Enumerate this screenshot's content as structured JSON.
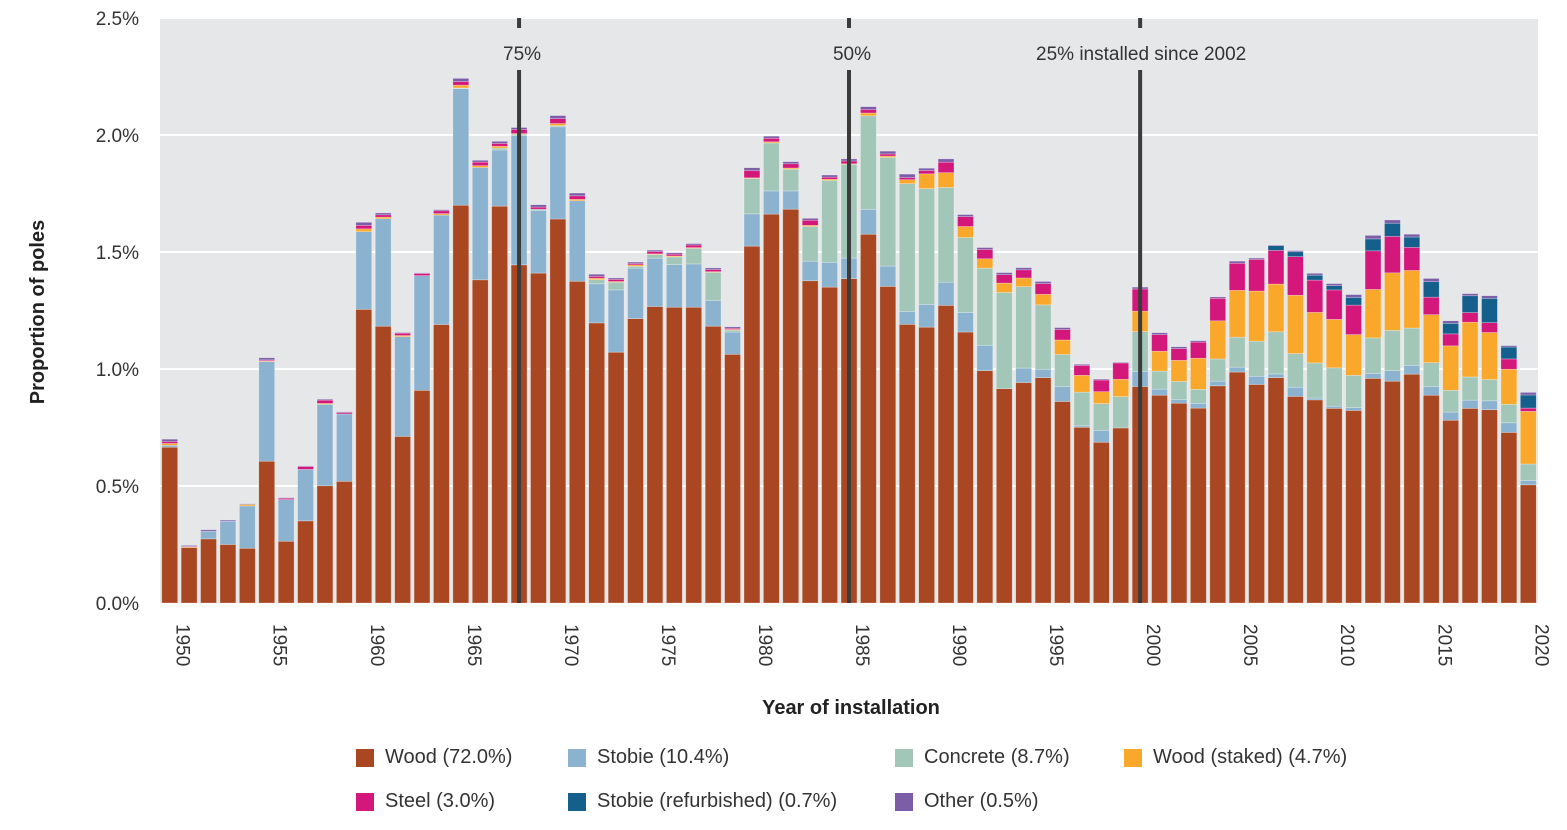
{
  "chart_data": {
    "type": "bar",
    "stacked": true,
    "title": "",
    "xlabel": "Year of installation",
    "ylabel": "Proportion of poles",
    "ylim": [
      0,
      2.5
    ],
    "yticks": [
      "0.0%",
      "0.5%",
      "1.0%",
      "1.5%",
      "2.0%",
      "2.5%"
    ],
    "ytick_values": [
      0,
      0.5,
      1.0,
      1.5,
      2.0,
      2.5
    ],
    "xticks": [
      "1950",
      "1955",
      "1960",
      "1965",
      "1970",
      "1975",
      "1980",
      "1985",
      "1990",
      "1995",
      "2000",
      "2005",
      "2010",
      "2015",
      "2020"
    ],
    "grid": true,
    "legend_placement": "bottom",
    "x_start": 1950,
    "x_end": 2020,
    "reference_lines": [
      {
        "year": 1968,
        "label": "75%"
      },
      {
        "year": 1985,
        "label": "50%"
      },
      {
        "year": 2000,
        "label": "25% installed since 2002"
      }
    ],
    "series": [
      {
        "name": "Wood",
        "legend": "Wood (72.0%)",
        "color": "#a84722",
        "values": [
          0.666,
          0.237,
          0.274,
          0.25,
          0.234,
          0.606,
          0.264,
          0.351,
          0.501,
          0.52,
          1.255,
          1.183,
          0.712,
          0.909,
          1.19,
          1.7,
          1.381,
          1.696,
          1.445,
          1.41,
          1.641,
          1.375,
          1.197,
          1.072,
          1.215,
          1.267,
          1.264,
          1.264,
          1.183,
          1.063,
          1.525,
          1.662,
          1.683,
          1.377,
          1.35,
          1.386,
          1.576,
          1.353,
          1.191,
          1.179,
          1.272,
          1.158,
          0.993,
          0.916,
          0.942,
          0.963,
          0.861,
          0.751,
          0.687,
          0.748,
          0.925,
          0.888,
          0.854,
          0.833,
          0.928,
          0.987,
          0.934,
          0.963,
          0.883,
          0.868,
          0.832,
          0.823,
          0.96,
          0.948,
          0.978,
          0.888,
          0.781,
          0.832,
          0.826,
          0.729,
          0.505
        ]
      },
      {
        "name": "Stobie",
        "legend": "Stobie (10.4%)",
        "color": "#8bb3cf",
        "values": [
          0.008,
          0,
          0.033,
          0.099,
          0.181,
          0.426,
          0.178,
          0.22,
          0.348,
          0.288,
          0.332,
          0.459,
          0.426,
          0.49,
          0.468,
          0.498,
          0.48,
          0.24,
          0.552,
          0.268,
          0.394,
          0.344,
          0.167,
          0.266,
          0.216,
          0.207,
          0.182,
          0.185,
          0.11,
          0.095,
          0.138,
          0.099,
          0.078,
          0.084,
          0.106,
          0.088,
          0.106,
          0.087,
          0.055,
          0.097,
          0.099,
          0.083,
          0.108,
          0,
          0.062,
          0.036,
          0.064,
          0.006,
          0.051,
          0,
          0.065,
          0.026,
          0.016,
          0.02,
          0.02,
          0.021,
          0.035,
          0.016,
          0.039,
          0.008,
          0.009,
          0.012,
          0.021,
          0.045,
          0.037,
          0.037,
          0.035,
          0.035,
          0.038,
          0.041,
          0.018
        ]
      },
      {
        "name": "Concrete",
        "legend": "Concrete (8.7%)",
        "color": "#a2c6b8",
        "values": [
          0,
          0,
          0,
          0,
          0,
          0,
          0,
          0,
          0,
          0,
          0,
          0,
          0,
          0,
          0,
          0.003,
          0,
          0.008,
          0.006,
          0.005,
          0.005,
          0,
          0.018,
          0.033,
          0.008,
          0.015,
          0.033,
          0.067,
          0.12,
          0.008,
          0.151,
          0.205,
          0.093,
          0.148,
          0.35,
          0.4,
          0.4,
          0.464,
          0.546,
          0.495,
          0.405,
          0.321,
          0.33,
          0.411,
          0.348,
          0.275,
          0.137,
          0.144,
          0.114,
          0.134,
          0.17,
          0.077,
          0.077,
          0.06,
          0.095,
          0.128,
          0.15,
          0.18,
          0.144,
          0.15,
          0.164,
          0.138,
          0.152,
          0.172,
          0.16,
          0.102,
          0.093,
          0.099,
          0.091,
          0.079,
          0.071
        ]
      },
      {
        "name": "Wood (staked)",
        "legend": "Wood (staked) (4.7%)",
        "color": "#f9a82b",
        "values": [
          0.008,
          0.003,
          0,
          0,
          0.006,
          0.003,
          0,
          0,
          0.004,
          0,
          0.012,
          0.007,
          0.005,
          0,
          0.006,
          0.012,
          0.008,
          0.008,
          0.003,
          0,
          0.009,
          0.006,
          0.006,
          0.003,
          0.006,
          0.003,
          0.004,
          0.003,
          0.003,
          0.003,
          0.003,
          0.005,
          0.005,
          0.005,
          0.005,
          0.003,
          0.012,
          0.006,
          0.017,
          0.063,
          0.063,
          0.047,
          0.04,
          0.04,
          0.037,
          0.045,
          0.062,
          0.072,
          0.051,
          0.074,
          0.087,
          0.085,
          0.09,
          0.133,
          0.163,
          0.2,
          0.214,
          0.204,
          0.249,
          0.216,
          0.207,
          0.174,
          0.207,
          0.246,
          0.246,
          0.205,
          0.19,
          0.234,
          0.201,
          0.15,
          0.225
        ]
      },
      {
        "name": "Steel",
        "legend": "Steel (3.0%)",
        "color": "#d4177b",
        "values": [
          0.008,
          0.002,
          0,
          0,
          0,
          0.004,
          0.006,
          0.012,
          0.014,
          0.006,
          0.015,
          0.01,
          0.01,
          0.009,
          0.012,
          0.015,
          0.015,
          0.012,
          0.018,
          0.009,
          0.021,
          0.015,
          0.008,
          0.009,
          0.006,
          0.01,
          0.008,
          0.011,
          0.009,
          0.005,
          0.031,
          0.015,
          0.018,
          0.022,
          0.009,
          0.012,
          0.015,
          0.009,
          0.009,
          0.014,
          0.045,
          0.042,
          0.04,
          0.036,
          0.035,
          0.046,
          0.045,
          0.042,
          0.05,
          0.07,
          0.095,
          0.071,
          0.05,
          0.069,
          0.096,
          0.116,
          0.135,
          0.144,
          0.165,
          0.138,
          0.126,
          0.126,
          0.165,
          0.156,
          0.099,
          0.075,
          0.051,
          0.041,
          0.042,
          0.044,
          0.014
        ]
      },
      {
        "name": "Stobie (refurbished)",
        "legend": "Stobie (refurbished) (0.7%)",
        "color": "#155f8d",
        "values": [
          0,
          0,
          0,
          0,
          0,
          0,
          0,
          0,
          0,
          0,
          0,
          0,
          0,
          0,
          0,
          0,
          0,
          0,
          0,
          0,
          0,
          0,
          0,
          0,
          0,
          0,
          0,
          0,
          0,
          0,
          0,
          0,
          0,
          0,
          0,
          0,
          0,
          0,
          0,
          0,
          0,
          0,
          0,
          0,
          0,
          0,
          0,
          0,
          0,
          0,
          0,
          0,
          0,
          0,
          0,
          0,
          0,
          0.02,
          0.021,
          0.021,
          0.018,
          0.033,
          0.051,
          0.056,
          0.044,
          0.066,
          0.045,
          0.072,
          0.104,
          0.051,
          0.056
        ]
      },
      {
        "name": "Other",
        "legend": "Other (0.5%)",
        "color": "#7b5ea7",
        "values": [
          0.01,
          0.004,
          0.006,
          0.005,
          0.003,
          0.009,
          0.002,
          0.003,
          0.004,
          0.003,
          0.013,
          0.008,
          0.003,
          0.003,
          0.005,
          0.014,
          0.008,
          0.009,
          0.008,
          0.01,
          0.013,
          0.012,
          0.009,
          0.006,
          0.006,
          0.006,
          0.006,
          0.006,
          0.007,
          0.006,
          0.012,
          0.009,
          0.009,
          0.008,
          0.009,
          0.009,
          0.012,
          0.012,
          0.015,
          0.01,
          0.014,
          0.009,
          0.008,
          0.009,
          0.009,
          0.009,
          0.008,
          0.005,
          0.004,
          0.003,
          0.008,
          0.008,
          0.008,
          0.006,
          0.006,
          0.009,
          0.006,
          0.003,
          0.005,
          0.008,
          0.009,
          0.012,
          0.015,
          0.014,
          0.012,
          0.014,
          0.011,
          0.009,
          0.011,
          0.006,
          0.011
        ]
      }
    ]
  }
}
